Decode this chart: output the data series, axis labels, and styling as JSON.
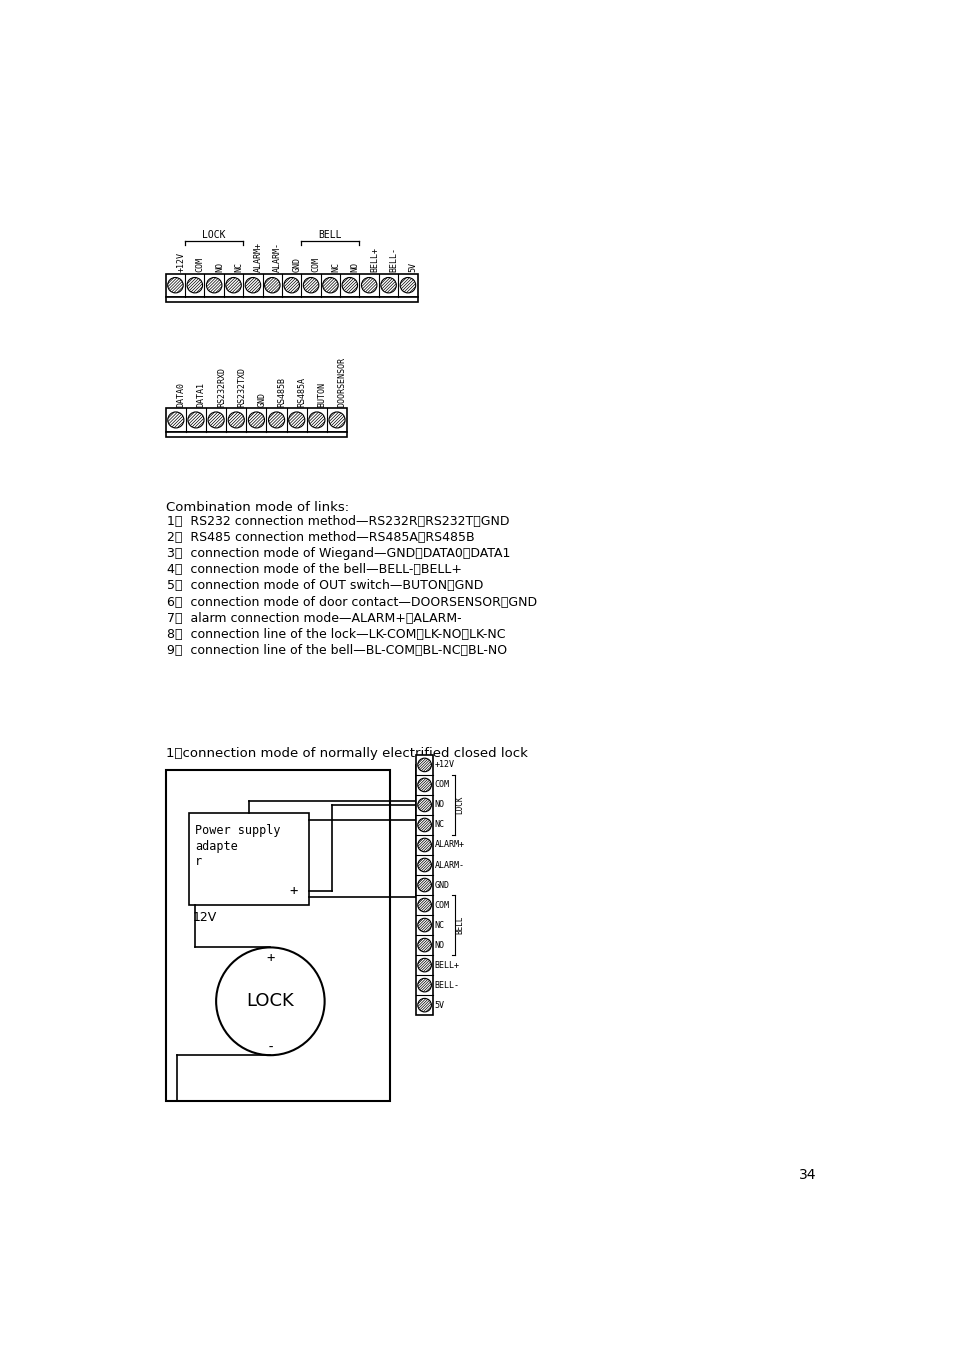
{
  "background_color": "#ffffff",
  "page_number": "34",
  "top_connector_labels": [
    "+12V",
    "COM",
    "NO",
    "NC",
    "ALARM+",
    "ALARM-",
    "GND",
    "COM",
    "NC",
    "NO",
    "BELL+",
    "BELL-",
    "5V"
  ],
  "bottom_connector_labels": [
    "DATA0",
    "DATA1",
    "RS232RXD",
    "RS232TXD",
    "GND",
    "RS485B",
    "RS485A",
    "BUTON",
    "DOORSENSOR"
  ],
  "combination_title": "Combination mode of links:",
  "combination_items": [
    "1、  RS232 connection method—RS232R、RS232T、GND",
    "2、  RS485 connection method—RS485A、RS485B",
    "3、  connection mode of Wiegand—GND、DATA0、DATA1",
    "4、  connection mode of the bell—BELL-、BELL+",
    "5、  connection mode of OUT switch—BUTON、GND",
    "6、  connection mode of door contact—DOORSENSOR、GND",
    "7、  alarm connection mode—ALARM+、ALARM-",
    "8、  connection line of the lock—LK-COM、LK-NO、LK-NC",
    "9、  connection line of the bell—BL-COM、BL-NC、BL-NO"
  ],
  "section1_title": "1、connection mode of normally electrified closed lock",
  "right_connector_labels": [
    "+12V",
    "COM",
    "NO",
    "NC",
    "ALARM+",
    "ALARM-",
    "GND",
    "COM",
    "NC",
    "NO",
    "BELL+",
    "BELL-",
    "5V"
  ],
  "right_connector_groups": [
    {
      "label": "LOCK",
      "start": 1,
      "end": 3
    },
    {
      "label": "BELL",
      "start": 7,
      "end": 9
    }
  ]
}
